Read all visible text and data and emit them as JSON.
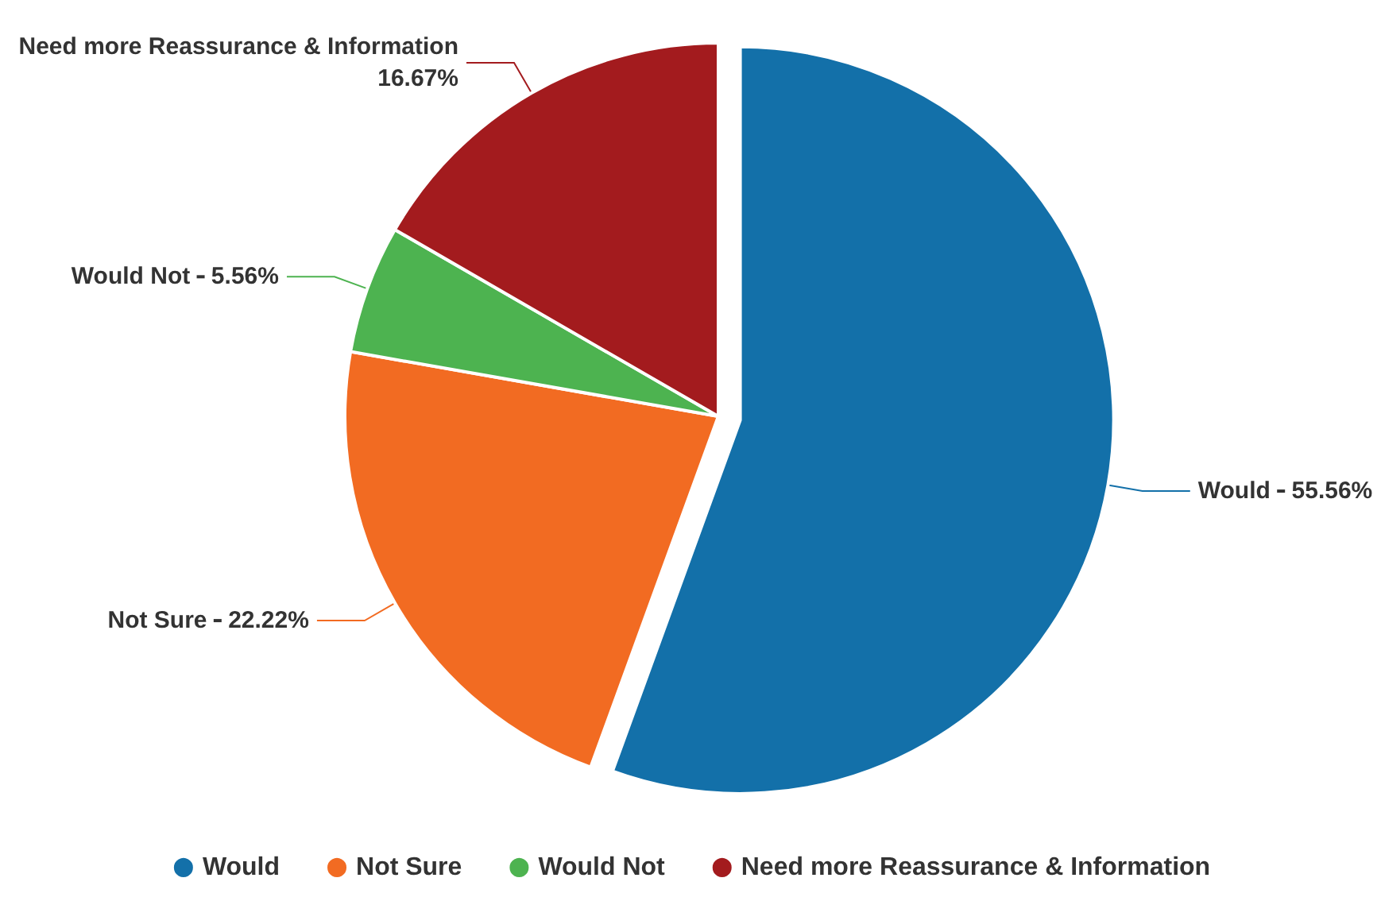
{
  "chart_data": {
    "type": "pie",
    "categories": [
      "Would",
      "Not Sure",
      "Would Not",
      "Need more Reassurance & Information"
    ],
    "values": [
      55.56,
      22.22,
      5.56,
      16.67
    ],
    "colors": [
      "#1370a9",
      "#f26b22",
      "#4db350",
      "#a31b1e"
    ],
    "value_labels": [
      "55.56%",
      "22.22%",
      "5.56%",
      "16.67%"
    ],
    "legend": "bottom"
  }
}
